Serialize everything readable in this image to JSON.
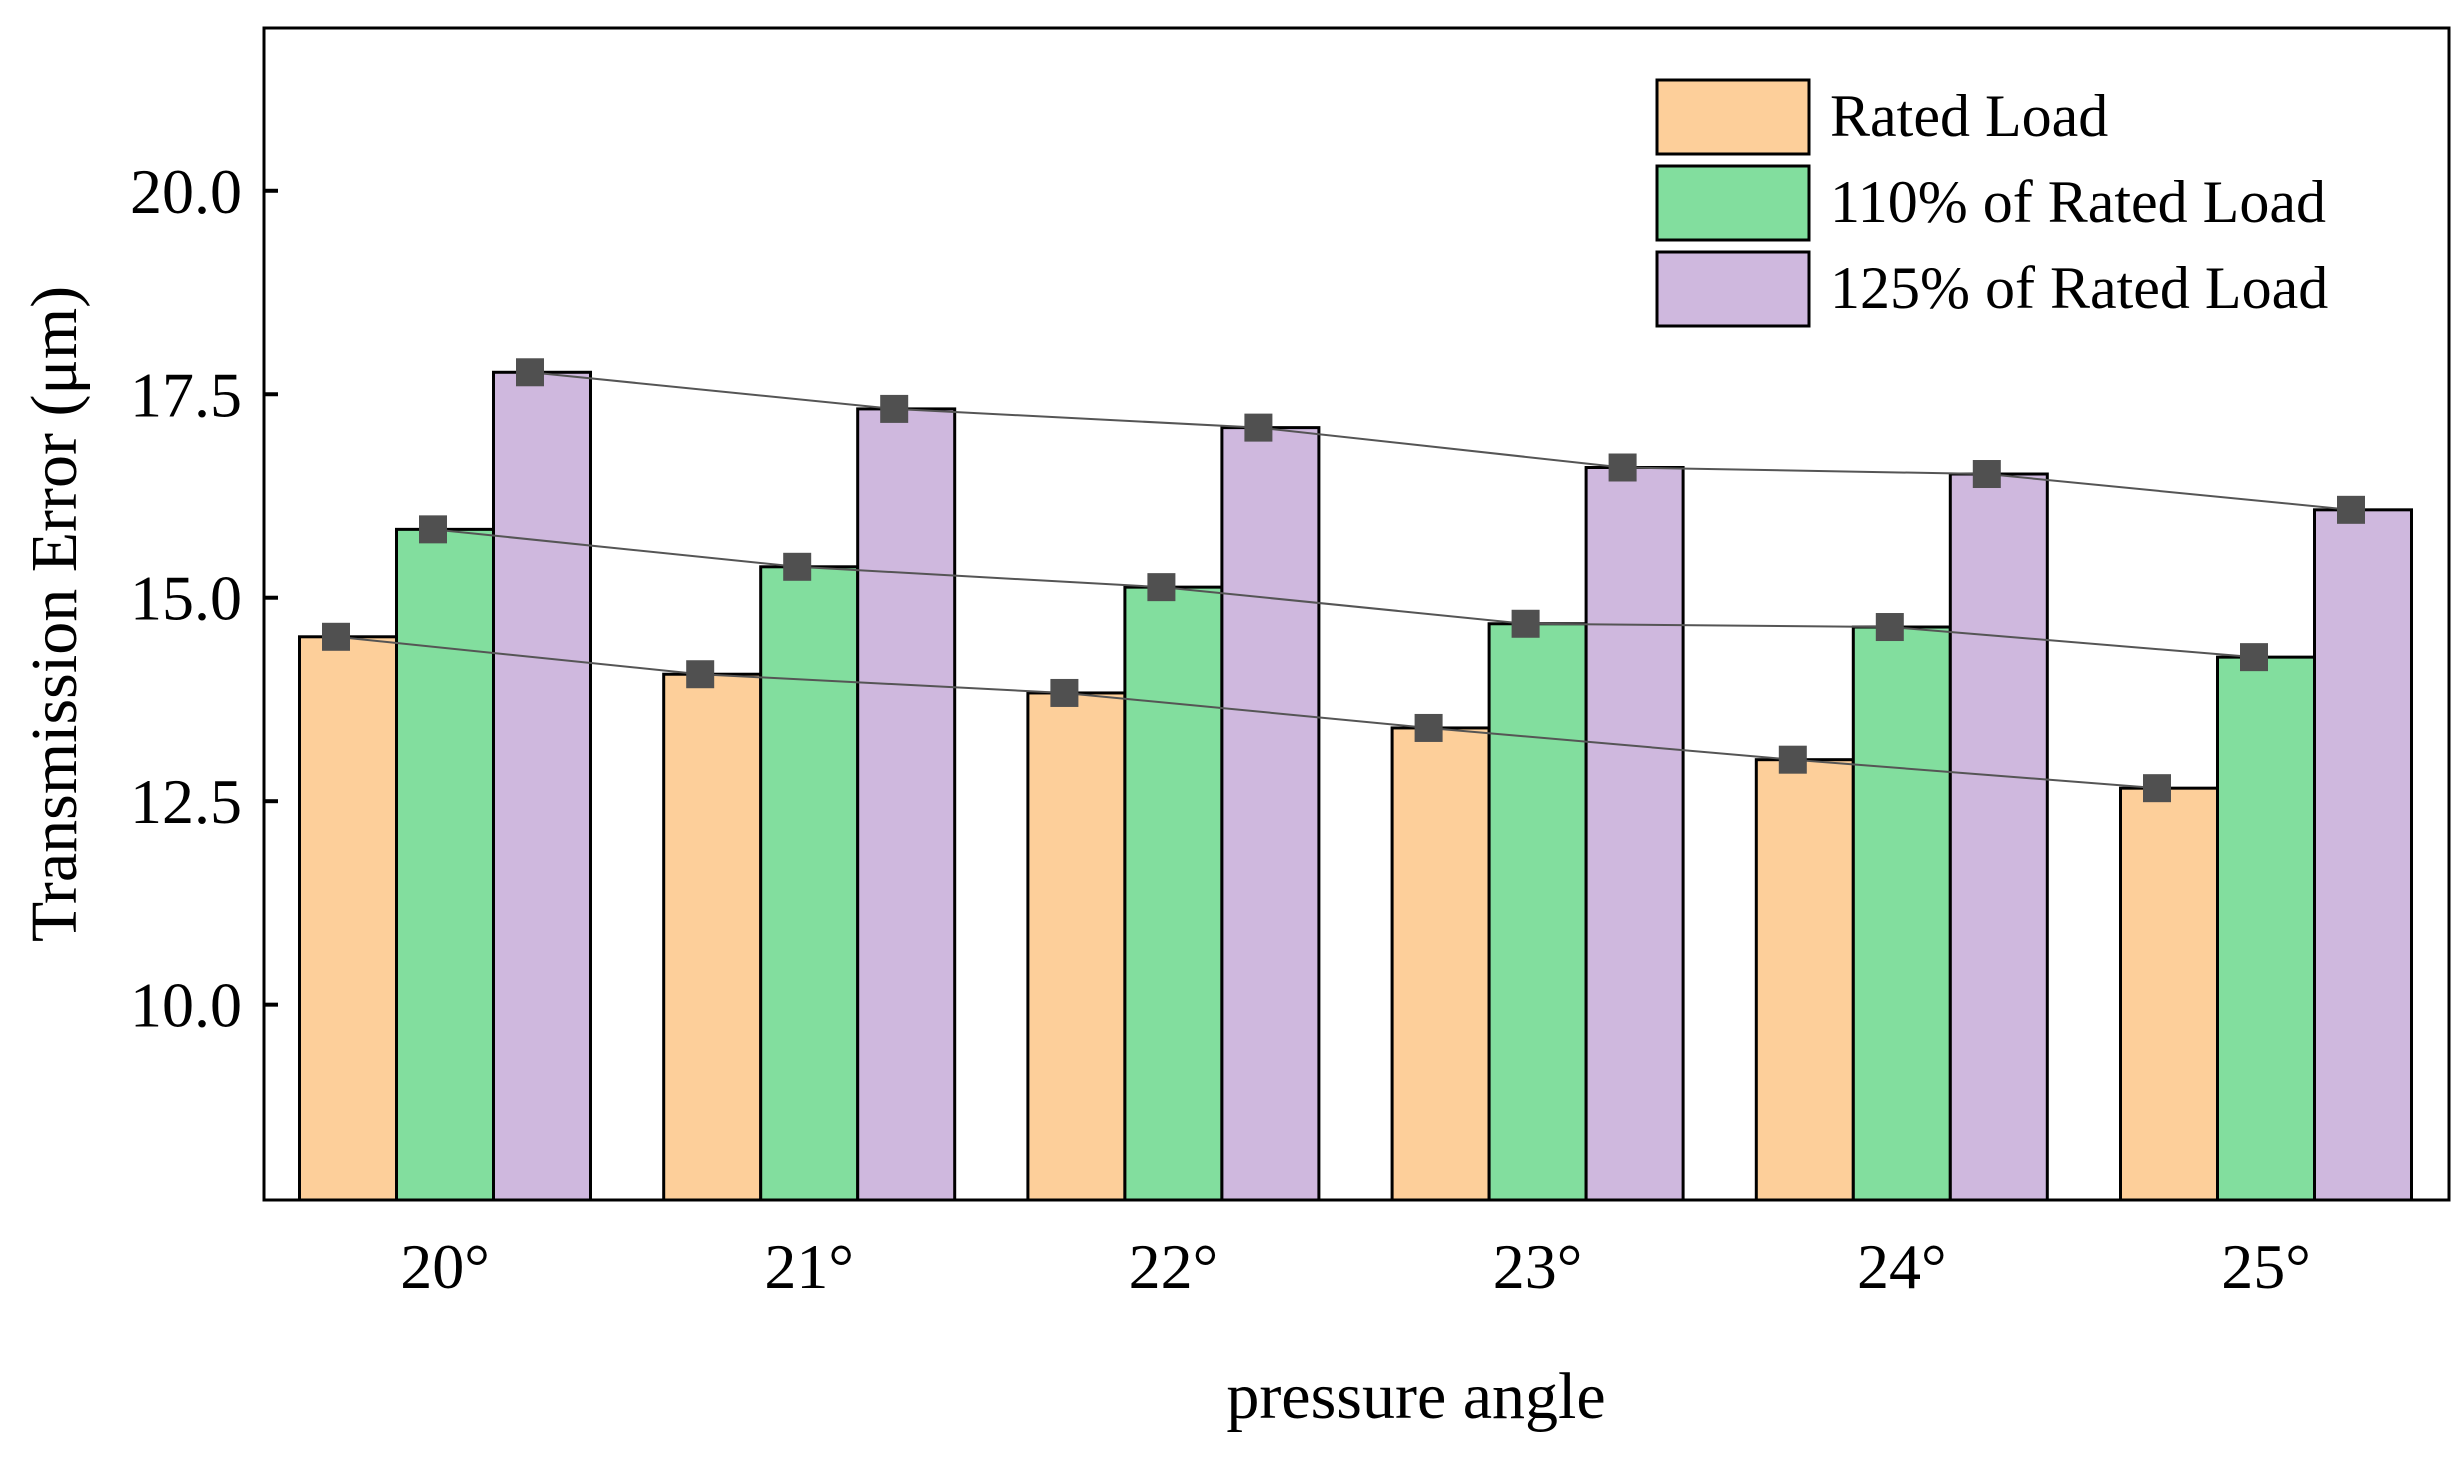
{
  "chart_data": {
    "type": "bar",
    "title": "",
    "xlabel": "pressure angle",
    "ylabel": "Transmission Error (μm)",
    "categories": [
      "20°",
      "21°",
      "22°",
      "23°",
      "24°",
      "25°"
    ],
    "ylim": [
      7.6,
      22.0
    ],
    "yticks": [
      10.0,
      12.5,
      15.0,
      17.5,
      20.0
    ],
    "ytick_labels": [
      "10.0",
      "12.5",
      "15.0",
      "17.5",
      "20.0"
    ],
    "grid": false,
    "legend_position": "top-right",
    "series": [
      {
        "name": "Rated Load",
        "color": "#FDCF9A",
        "values": [
          14.52,
          14.06,
          13.83,
          13.4,
          13.01,
          12.66
        ]
      },
      {
        "name": "110% of  Rated Load",
        "color": "#82DE9E",
        "values": [
          15.84,
          15.38,
          15.13,
          14.68,
          14.64,
          14.27
        ]
      },
      {
        "name": "125% of  Rated Load",
        "color": "#CFB8DE",
        "values": [
          17.77,
          17.32,
          17.09,
          16.6,
          16.52,
          16.08
        ]
      }
    ],
    "marker_color": "#505050",
    "trend_lines": true
  }
}
